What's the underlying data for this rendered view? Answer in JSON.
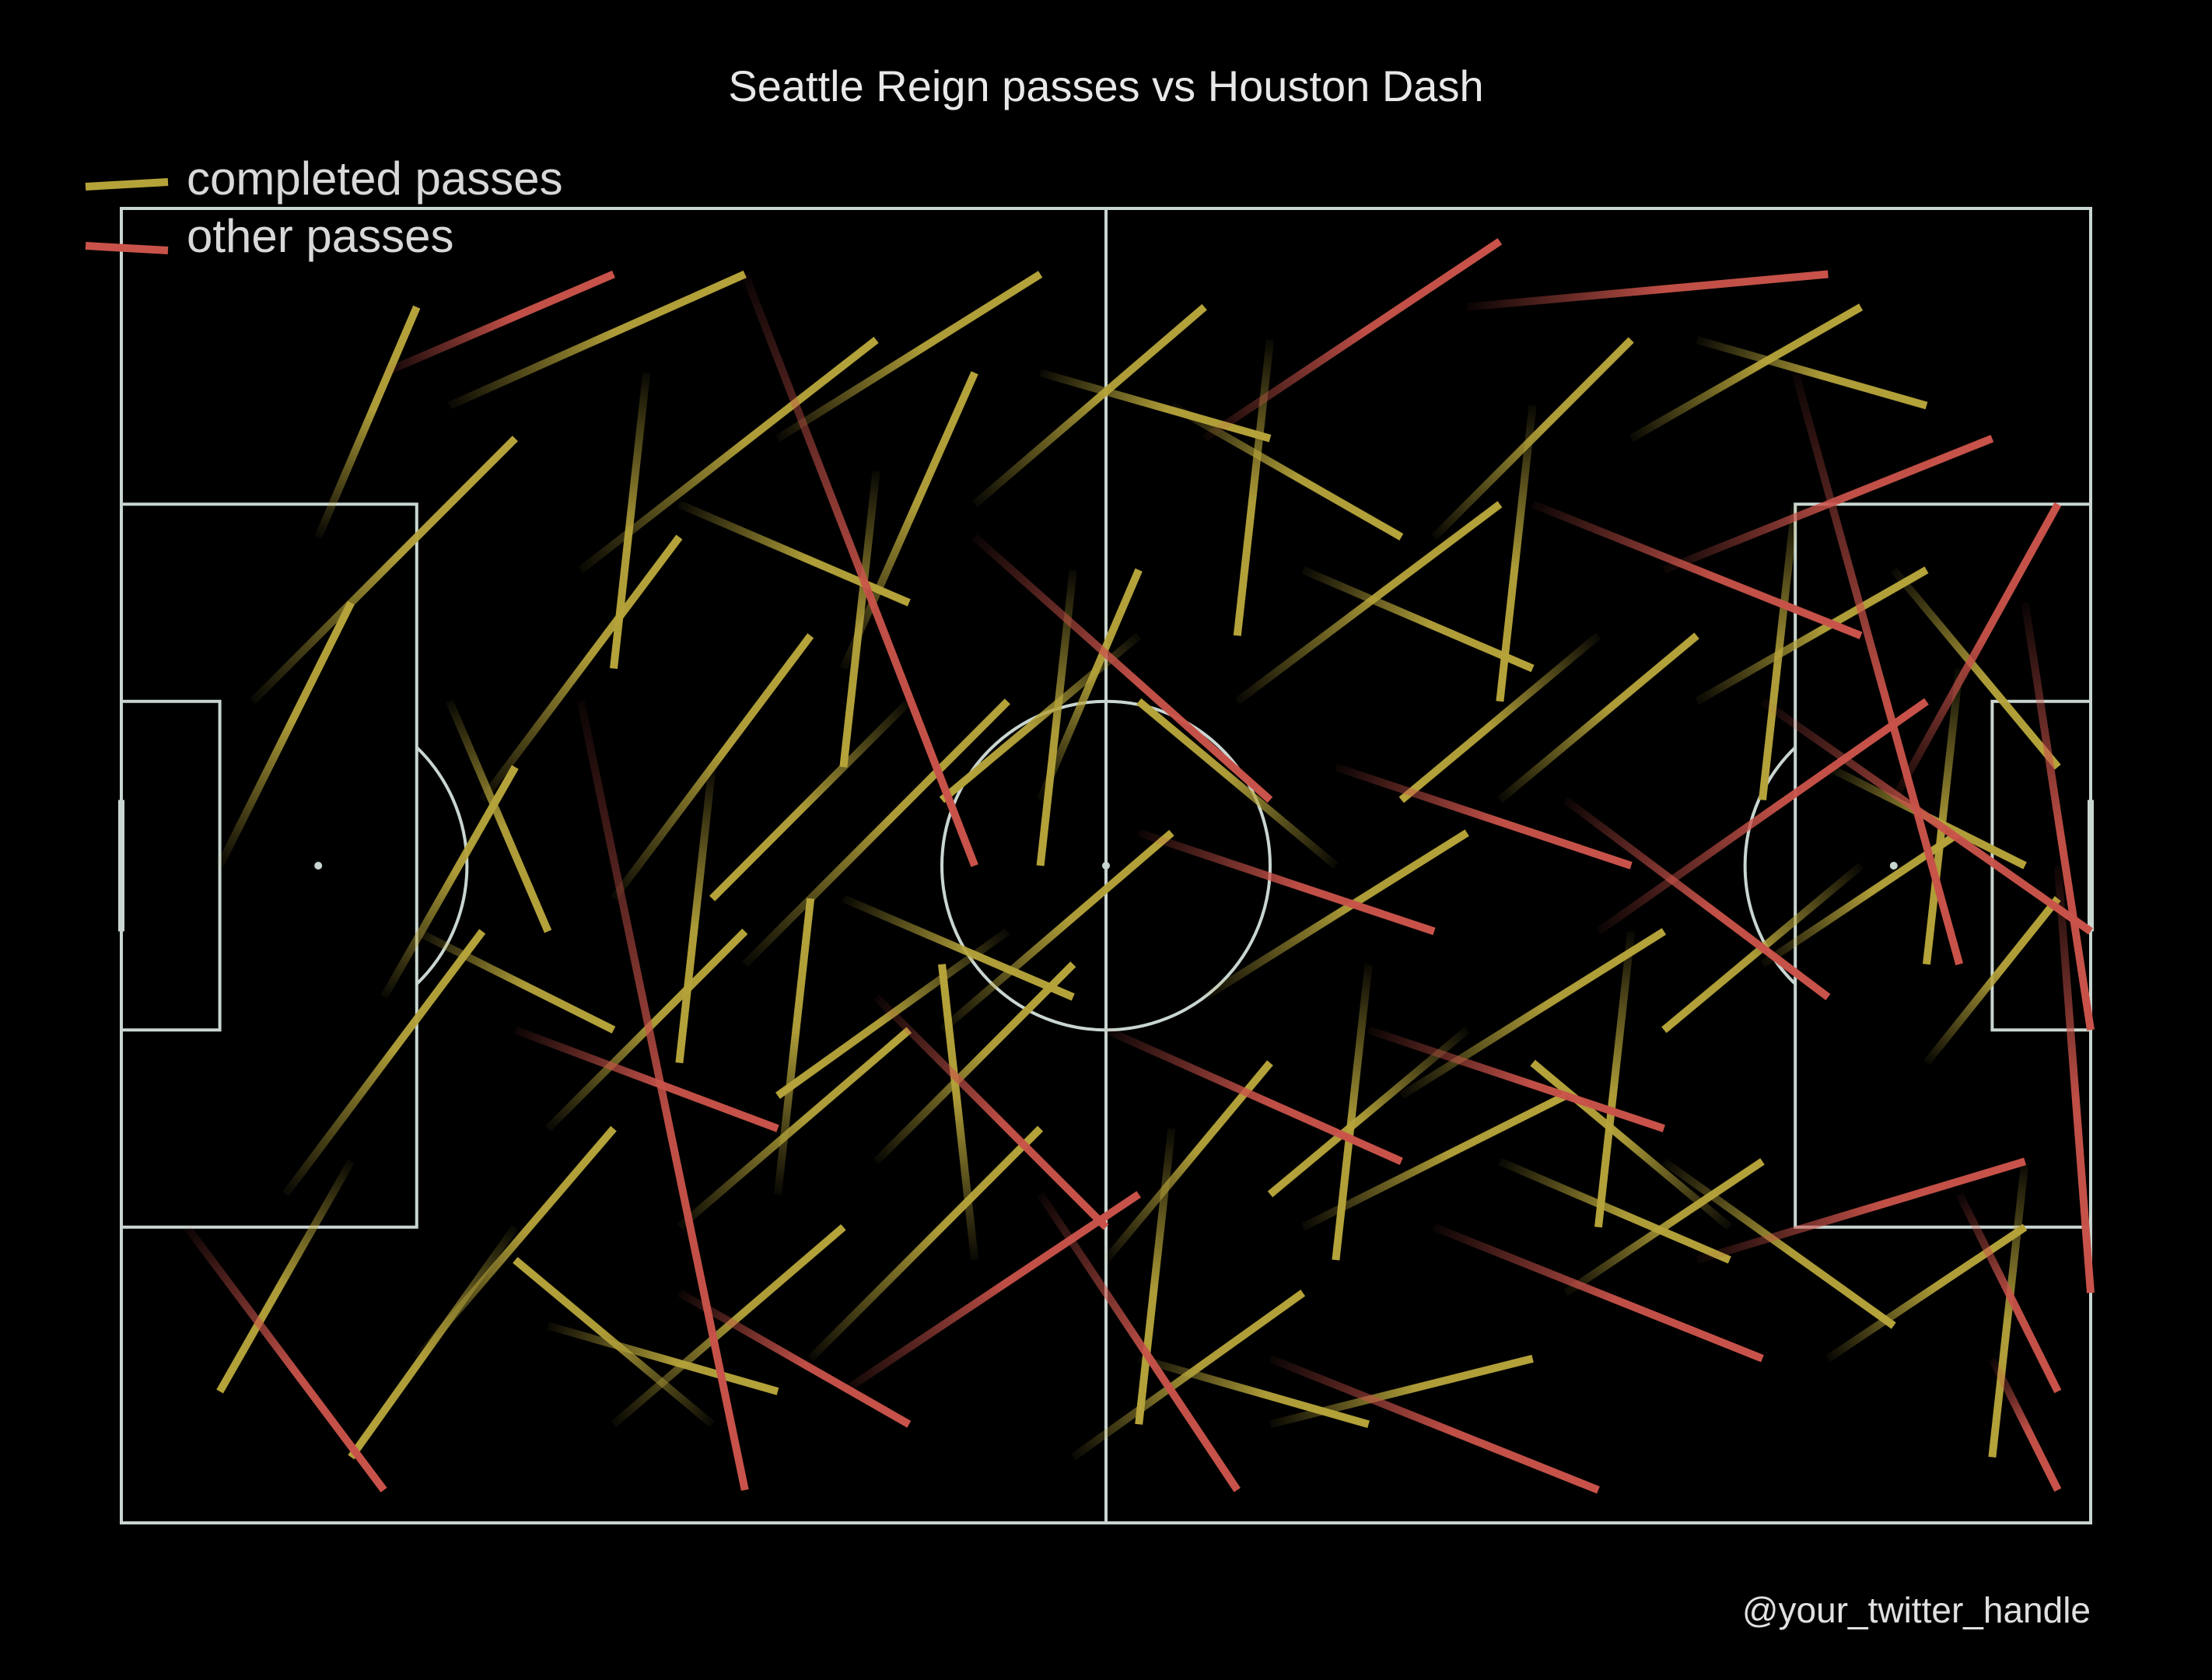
{
  "title": "Seattle Reign passes vs Houston Dash",
  "credit": "@your_twitter_handle",
  "colors": {
    "background": "#000000",
    "pitch_lines": "#c9d6d0",
    "completed": "#b5a33a",
    "other": "#c9534a"
  },
  "legend": {
    "completed_label": "completed passes",
    "other_label": "other passes"
  },
  "chart_data": {
    "type": "pass-map",
    "pitch": {
      "length": 120,
      "width": 80
    },
    "series": [
      {
        "name": "completed passes",
        "key": "completed",
        "passes": [
          [
            12,
            20,
            18,
            6
          ],
          [
            8,
            30,
            24,
            14
          ],
          [
            16,
            48,
            24,
            34
          ],
          [
            10,
            60,
            22,
            44
          ],
          [
            18,
            70,
            30,
            56
          ],
          [
            20,
            12,
            38,
            4
          ],
          [
            28,
            22,
            46,
            8
          ],
          [
            22,
            36,
            34,
            20
          ],
          [
            30,
            42,
            42,
            26
          ],
          [
            26,
            56,
            38,
            44
          ],
          [
            34,
            62,
            48,
            50
          ],
          [
            30,
            74,
            44,
            62
          ],
          [
            40,
            14,
            56,
            4
          ],
          [
            44,
            28,
            52,
            10
          ],
          [
            38,
            46,
            54,
            30
          ],
          [
            46,
            58,
            58,
            46
          ],
          [
            42,
            70,
            56,
            56
          ],
          [
            52,
            18,
            66,
            6
          ],
          [
            56,
            36,
            62,
            22
          ],
          [
            50,
            50,
            64,
            38
          ],
          [
            60,
            64,
            70,
            52
          ],
          [
            58,
            76,
            72,
            66
          ],
          [
            64,
            12,
            78,
            20
          ],
          [
            68,
            30,
            84,
            18
          ],
          [
            66,
            48,
            82,
            38
          ],
          [
            72,
            62,
            88,
            54
          ],
          [
            70,
            74,
            86,
            70
          ],
          [
            80,
            20,
            92,
            8
          ],
          [
            84,
            36,
            96,
            26
          ],
          [
            78,
            54,
            94,
            44
          ],
          [
            88,
            66,
            100,
            58
          ],
          [
            92,
            14,
            106,
            6
          ],
          [
            96,
            30,
            110,
            22
          ],
          [
            100,
            46,
            112,
            38
          ],
          [
            94,
            58,
            108,
            68
          ],
          [
            104,
            70,
            116,
            62
          ],
          [
            108,
            22,
            118,
            34
          ],
          [
            110,
            52,
            118,
            42
          ],
          [
            6,
            40,
            14,
            24
          ],
          [
            14,
            58,
            6,
            72
          ],
          [
            24,
            62,
            14,
            76
          ],
          [
            36,
            74,
            24,
            64
          ],
          [
            48,
            30,
            36,
            42
          ],
          [
            54,
            44,
            40,
            54
          ],
          [
            62,
            26,
            50,
            36
          ],
          [
            74,
            40,
            62,
            30
          ],
          [
            82,
            50,
            70,
            60
          ],
          [
            90,
            26,
            78,
            36
          ],
          [
            98,
            62,
            86,
            52
          ],
          [
            106,
            40,
            94,
            50
          ],
          [
            20,
            30,
            26,
            44
          ],
          [
            32,
            10,
            30,
            28
          ],
          [
            36,
            34,
            34,
            52
          ],
          [
            40,
            60,
            42,
            42
          ],
          [
            46,
            16,
            44,
            34
          ],
          [
            52,
            64,
            50,
            46
          ],
          [
            58,
            22,
            56,
            40
          ],
          [
            64,
            56,
            62,
            74
          ],
          [
            70,
            8,
            68,
            26
          ],
          [
            76,
            46,
            74,
            64
          ],
          [
            86,
            12,
            84,
            30
          ],
          [
            92,
            44,
            90,
            62
          ],
          [
            102,
            18,
            100,
            36
          ],
          [
            112,
            28,
            110,
            46
          ],
          [
            116,
            58,
            114,
            76
          ],
          [
            18,
            44,
            30,
            50
          ],
          [
            26,
            68,
            40,
            72
          ],
          [
            34,
            18,
            48,
            24
          ],
          [
            44,
            42,
            58,
            48
          ],
          [
            56,
            10,
            70,
            14
          ],
          [
            62,
            70,
            76,
            74
          ],
          [
            72,
            22,
            86,
            28
          ],
          [
            84,
            58,
            98,
            64
          ],
          [
            96,
            8,
            110,
            12
          ],
          [
            104,
            34,
            116,
            40
          ]
        ]
      },
      {
        "name": "other passes",
        "key": "other",
        "passes": [
          [
            4,
            62,
            16,
            78
          ],
          [
            16,
            10,
            30,
            4
          ],
          [
            28,
            30,
            38,
            78
          ],
          [
            38,
            4,
            52,
            40
          ],
          [
            44,
            72,
            62,
            60
          ],
          [
            52,
            20,
            70,
            36
          ],
          [
            60,
            50,
            78,
            58
          ],
          [
            66,
            14,
            84,
            2
          ],
          [
            74,
            34,
            92,
            40
          ],
          [
            80,
            62,
            100,
            70
          ],
          [
            86,
            18,
            106,
            26
          ],
          [
            90,
            44,
            110,
            30
          ],
          [
            96,
            64,
            116,
            58
          ],
          [
            102,
            10,
            112,
            46
          ],
          [
            108,
            36,
            118,
            18
          ],
          [
            112,
            60,
            118,
            72
          ],
          [
            116,
            24,
            120,
            50
          ],
          [
            118,
            40,
            120,
            66
          ],
          [
            114,
            70,
            118,
            78
          ],
          [
            100,
            30,
            120,
            44
          ],
          [
            70,
            70,
            90,
            78
          ],
          [
            56,
            60,
            68,
            78
          ],
          [
            46,
            48,
            60,
            62
          ],
          [
            34,
            66,
            48,
            74
          ],
          [
            24,
            50,
            40,
            56
          ],
          [
            62,
            38,
            80,
            44
          ],
          [
            76,
            50,
            94,
            56
          ],
          [
            88,
            36,
            104,
            48
          ],
          [
            94,
            22,
            114,
            14
          ],
          [
            82,
            6,
            104,
            4
          ]
        ]
      }
    ]
  }
}
